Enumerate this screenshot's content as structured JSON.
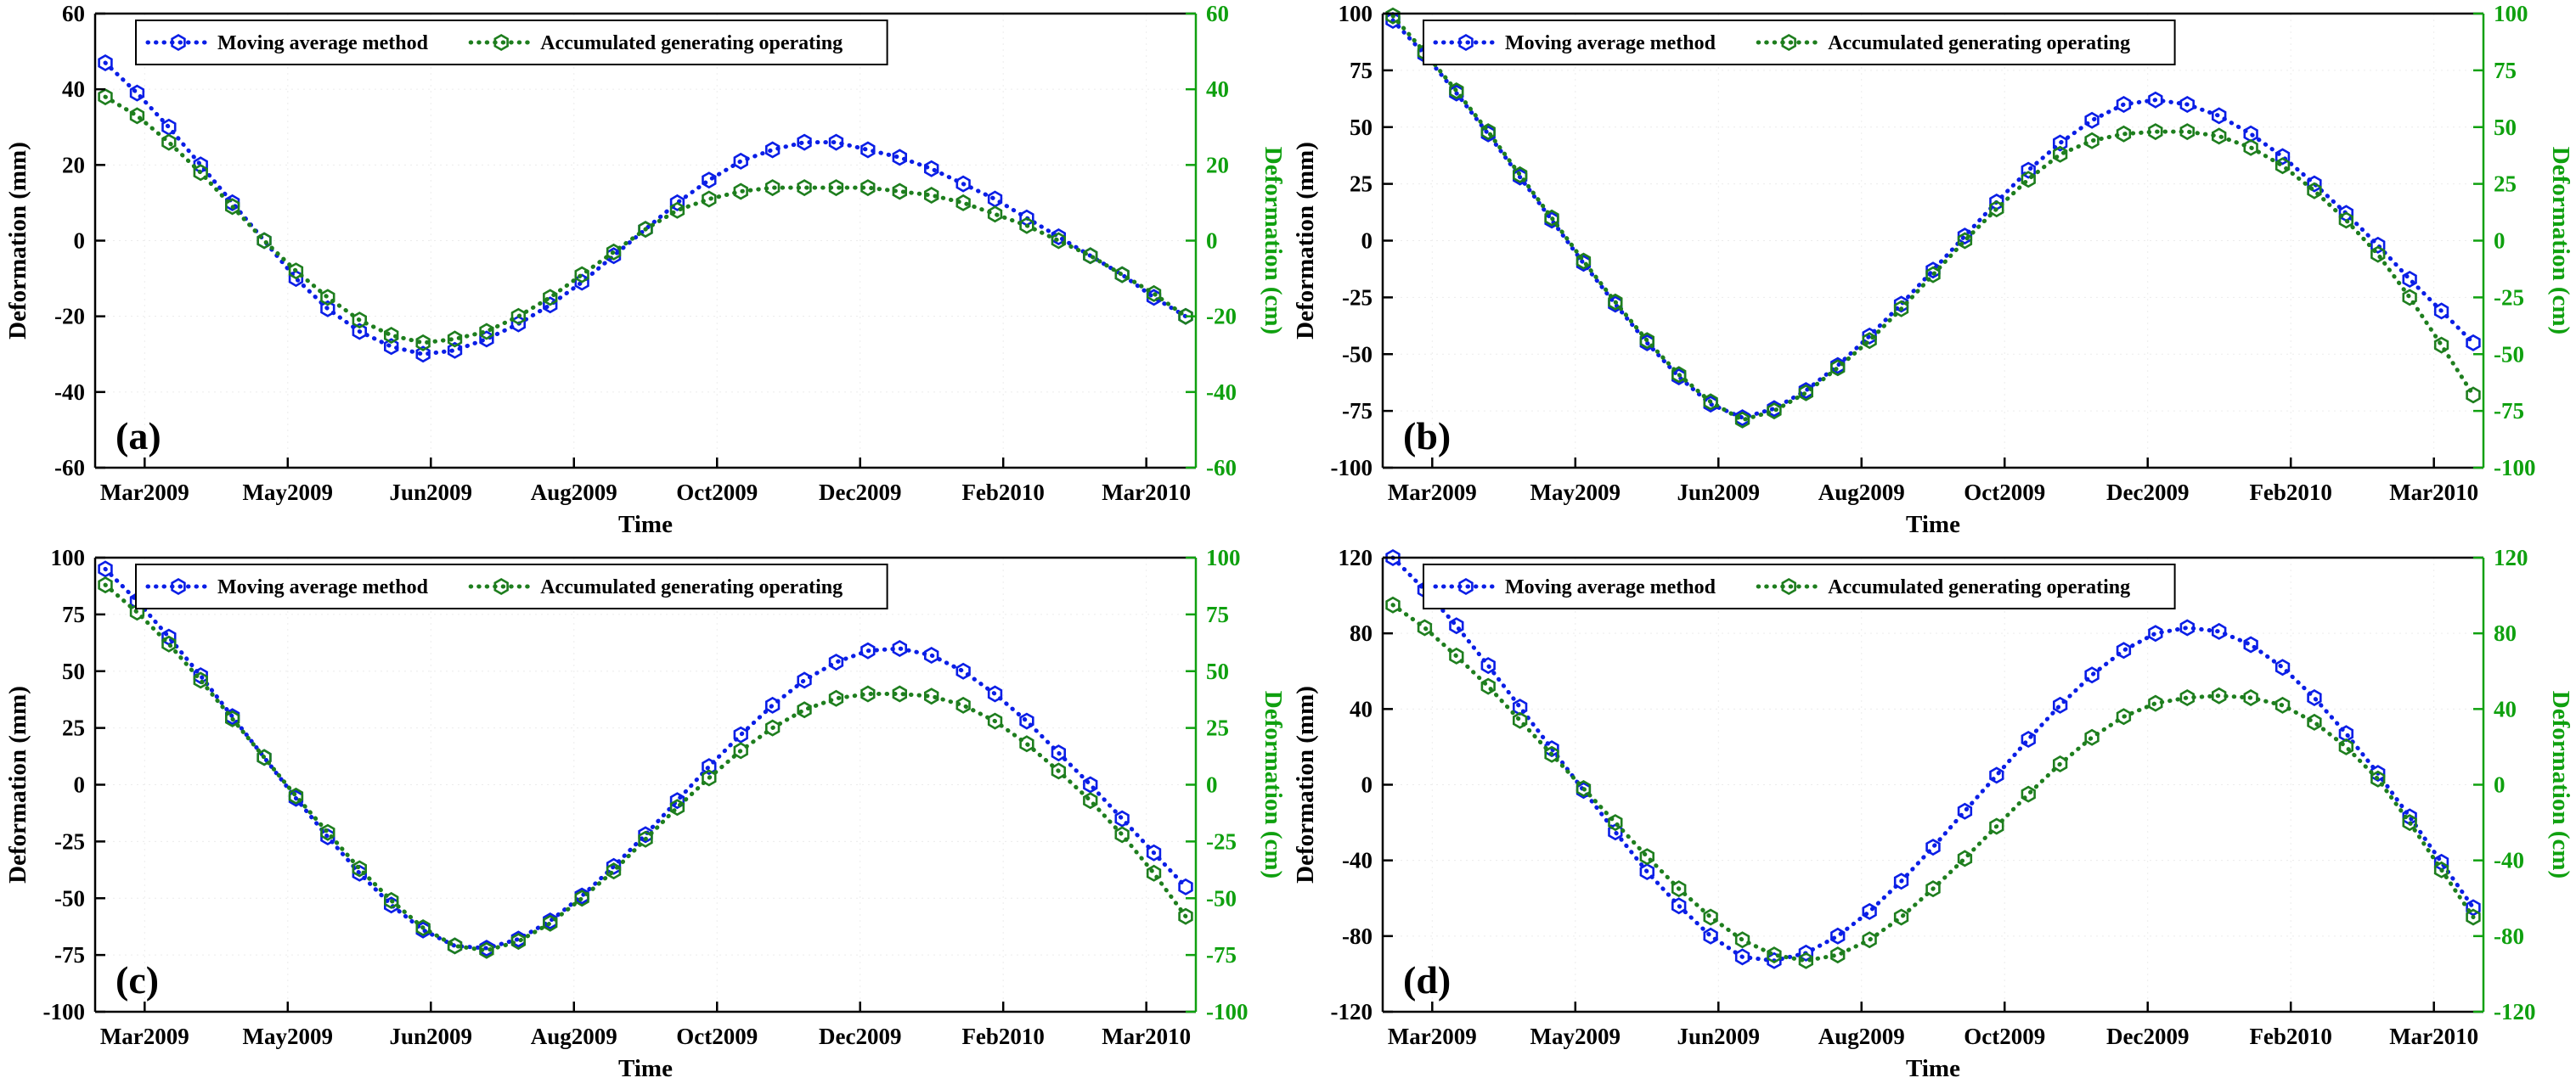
{
  "colors": {
    "blue": "#0a1ee6",
    "green": "#1e7e1e",
    "axis_green": "#0fa00f",
    "axis_black": "#000000",
    "grid": "#ececec"
  },
  "chart_data": [
    {
      "type": "line",
      "panel_label": "(a)",
      "xlabel": "Time",
      "ylabel_left": "Deformation (mm)",
      "ylabel_right": "Deformation (cm)",
      "ylim": [
        -60,
        60
      ],
      "yticks": [
        -60,
        -40,
        -20,
        0,
        20,
        40,
        60
      ],
      "x_tick_labels": [
        "Mar2009",
        "May2009",
        "Jun2009",
        "Aug2009",
        "Oct2009",
        "Dec2009",
        "Feb2010",
        "Mar2010"
      ],
      "legend": [
        "Moving average method",
        "Accumulated generating operating"
      ],
      "legend_position": "top-left",
      "grid": true,
      "series": [
        {
          "name": "Moving average method",
          "color": "#0a1ee6",
          "marker": "hexagon",
          "values": [
            47,
            39,
            30,
            20,
            10,
            0,
            -10,
            -18,
            -24,
            -28,
            -30,
            -29,
            -26,
            -22,
            -17,
            -11,
            -4,
            3,
            10,
            16,
            21,
            24,
            26,
            26,
            24,
            22,
            19,
            15,
            11,
            6,
            1,
            -4,
            -9,
            -15,
            -20
          ]
        },
        {
          "name": "Accumulated generating operating",
          "color": "#1e7e1e",
          "marker": "hexagon",
          "values": [
            38,
            33,
            26,
            18,
            9,
            0,
            -8,
            -15,
            -21,
            -25,
            -27,
            -26,
            -24,
            -20,
            -15,
            -9,
            -3,
            3,
            8,
            11,
            13,
            14,
            14,
            14,
            14,
            13,
            12,
            10,
            7,
            4,
            0,
            -4,
            -9,
            -14,
            -20
          ]
        }
      ]
    },
    {
      "type": "line",
      "panel_label": "(b)",
      "xlabel": "Time",
      "ylabel_left": "Deformation (mm)",
      "ylabel_right": "Deformation (cm)",
      "ylim": [
        -100,
        100
      ],
      "yticks": [
        -100,
        -75,
        -50,
        -25,
        0,
        25,
        50,
        75,
        100
      ],
      "x_tick_labels": [
        "Mar2009",
        "May2009",
        "Jun2009",
        "Aug2009",
        "Oct2009",
        "Dec2009",
        "Feb2010",
        "Mar2010"
      ],
      "legend": [
        "Moving average method",
        "Accumulated generating operating"
      ],
      "legend_position": "top-left",
      "grid": true,
      "series": [
        {
          "name": "Moving average method",
          "color": "#0a1ee6",
          "marker": "hexagon",
          "values": [
            97,
            82,
            65,
            47,
            28,
            9,
            -10,
            -28,
            -45,
            -60,
            -72,
            -78,
            -74,
            -66,
            -55,
            -42,
            -28,
            -13,
            2,
            17,
            31,
            43,
            53,
            60,
            62,
            60,
            55,
            47,
            37,
            25,
            12,
            -2,
            -17,
            -31,
            -45
          ]
        },
        {
          "name": "Accumulated generating operating",
          "color": "#1e7e1e",
          "marker": "hexagon",
          "values": [
            99,
            83,
            66,
            48,
            29,
            10,
            -9,
            -27,
            -44,
            -59,
            -71,
            -79,
            -75,
            -67,
            -56,
            -44,
            -30,
            -15,
            0,
            14,
            27,
            38,
            44,
            47,
            48,
            48,
            46,
            41,
            33,
            22,
            9,
            -6,
            -25,
            -46,
            -68
          ]
        }
      ]
    },
    {
      "type": "line",
      "panel_label": "(c)",
      "xlabel": "Time",
      "ylabel_left": "Deformation (mm)",
      "ylabel_right": "Deformation (cm)",
      "ylim": [
        -100,
        100
      ],
      "yticks": [
        -100,
        -75,
        -50,
        -25,
        0,
        25,
        50,
        75,
        100
      ],
      "x_tick_labels": [
        "Mar2009",
        "May2009",
        "Jun2009",
        "Aug2009",
        "Oct2009",
        "Dec2009",
        "Feb2010",
        "Mar2010"
      ],
      "legend": [
        "Moving average method",
        "Accumulated generating operating"
      ],
      "legend_position": "top-left",
      "grid": true,
      "series": [
        {
          "name": "Moving average method",
          "color": "#0a1ee6",
          "marker": "hexagon",
          "values": [
            95,
            81,
            65,
            48,
            30,
            12,
            -6,
            -23,
            -39,
            -53,
            -64,
            -71,
            -72,
            -68,
            -60,
            -49,
            -36,
            -22,
            -7,
            8,
            22,
            35,
            46,
            54,
            59,
            60,
            57,
            50,
            40,
            28,
            14,
            0,
            -15,
            -30,
            -45
          ]
        },
        {
          "name": "Accumulated generating operating",
          "color": "#1e7e1e",
          "marker": "hexagon",
          "values": [
            88,
            76,
            62,
            46,
            29,
            12,
            -5,
            -21,
            -37,
            -51,
            -63,
            -71,
            -73,
            -69,
            -61,
            -50,
            -38,
            -24,
            -10,
            3,
            15,
            25,
            33,
            38,
            40,
            40,
            39,
            35,
            28,
            18,
            6,
            -7,
            -22,
            -39,
            -58
          ]
        }
      ]
    },
    {
      "type": "line",
      "panel_label": "(d)",
      "xlabel": "Time",
      "ylabel_left": "Deformation (mm)",
      "ylabel_right": "Deformation (cm)",
      "ylim": [
        -120,
        120
      ],
      "yticks": [
        -120,
        -80,
        -40,
        0,
        40,
        80,
        120
      ],
      "x_tick_labels": [
        "Mar2009",
        "May2009",
        "Jun2009",
        "Aug2009",
        "Oct2009",
        "Dec2009",
        "Feb2010",
        "Mar2010"
      ],
      "legend": [
        "Moving average method",
        "Accumulated generating operating"
      ],
      "legend_position": "top-left",
      "grid": true,
      "series": [
        {
          "name": "Moving average method",
          "color": "#0a1ee6",
          "marker": "hexagon",
          "values": [
            120,
            103,
            84,
            63,
            41,
            19,
            -3,
            -25,
            -46,
            -64,
            -80,
            -91,
            -93,
            -89,
            -80,
            -67,
            -51,
            -33,
            -14,
            5,
            24,
            42,
            58,
            71,
            80,
            83,
            81,
            74,
            62,
            46,
            27,
            6,
            -17,
            -41,
            -65
          ]
        },
        {
          "name": "Accumulated generating operating",
          "color": "#1e7e1e",
          "marker": "hexagon",
          "values": [
            95,
            83,
            68,
            52,
            34,
            16,
            -2,
            -20,
            -38,
            -55,
            -70,
            -82,
            -90,
            -93,
            -90,
            -82,
            -70,
            -55,
            -39,
            -22,
            -5,
            11,
            25,
            36,
            43,
            46,
            47,
            46,
            42,
            33,
            20,
            3,
            -20,
            -45,
            -70
          ]
        }
      ]
    }
  ]
}
